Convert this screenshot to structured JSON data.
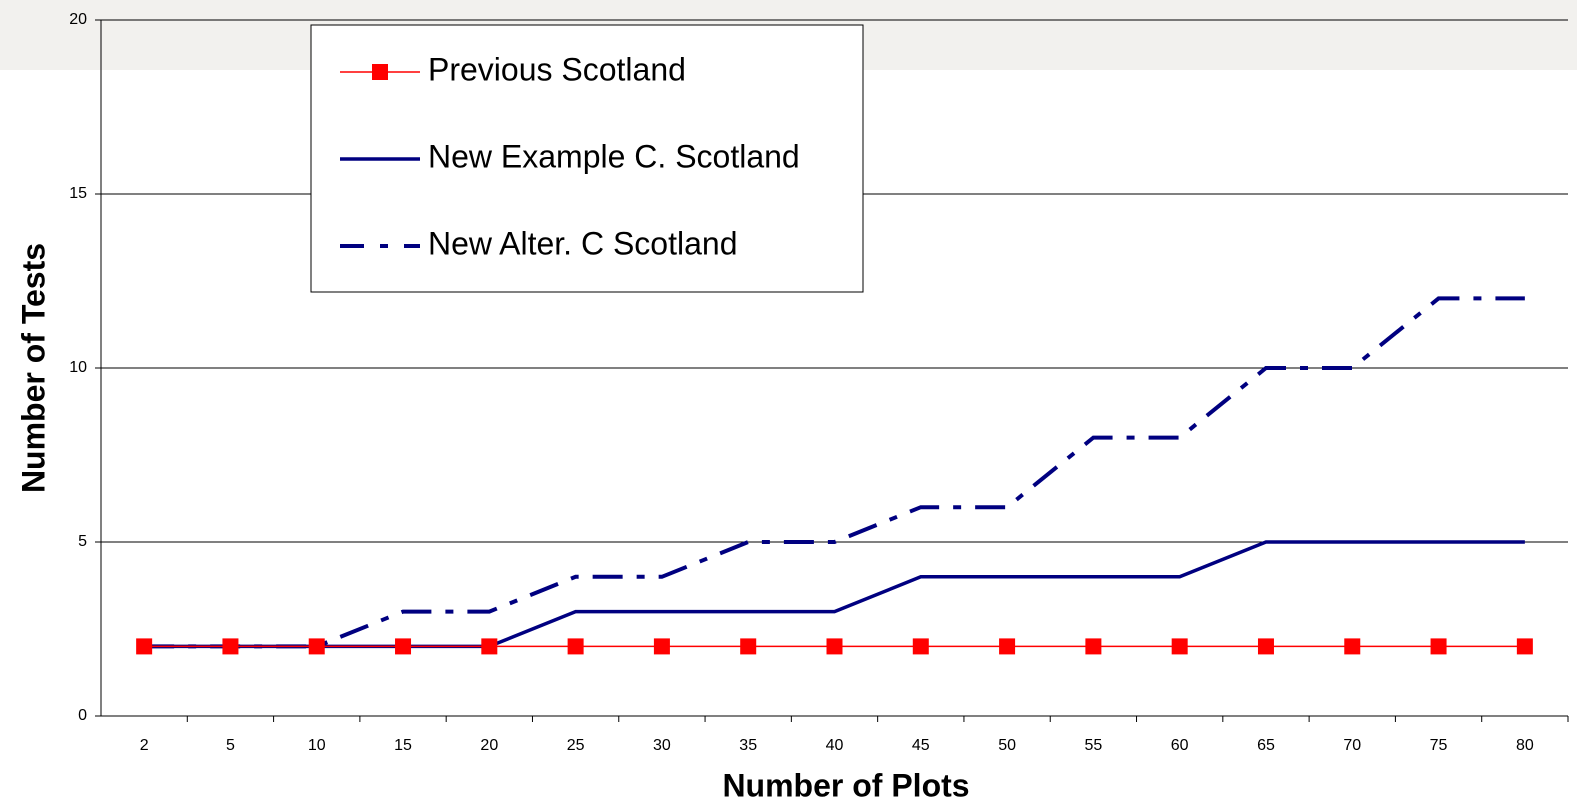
{
  "chart_data": {
    "type": "line",
    "x_label": "Number of Plots",
    "y_label": "Number of Tests",
    "categories": [
      "2",
      "5",
      "10",
      "15",
      "20",
      "25",
      "30",
      "35",
      "40",
      "45",
      "50",
      "55",
      "60",
      "65",
      "70",
      "75",
      "80"
    ],
    "series": [
      {
        "name": "Previous Scotland",
        "color": "#ff0000",
        "style": "solid-marker",
        "values": [
          2,
          2,
          2,
          2,
          2,
          2,
          2,
          2,
          2,
          2,
          2,
          2,
          2,
          2,
          2,
          2,
          2
        ]
      },
      {
        "name": "New Example C. Scotland",
        "color": "#000080",
        "style": "solid",
        "values": [
          2,
          2,
          2,
          2,
          2,
          3,
          3,
          3,
          3,
          4,
          4,
          4,
          4,
          5,
          5,
          5,
          5
        ]
      },
      {
        "name": "New Alter. C Scotland",
        "color": "#000080",
        "style": "dash-dot",
        "values": [
          2,
          2,
          2,
          3,
          3,
          4,
          4,
          5,
          5,
          6,
          6,
          8,
          8,
          10,
          10,
          12,
          12
        ]
      }
    ],
    "ylim": [
      0,
      20
    ],
    "yticks": [
      0,
      5,
      10,
      15,
      20
    ],
    "grid": true,
    "legend": "top-left"
  }
}
